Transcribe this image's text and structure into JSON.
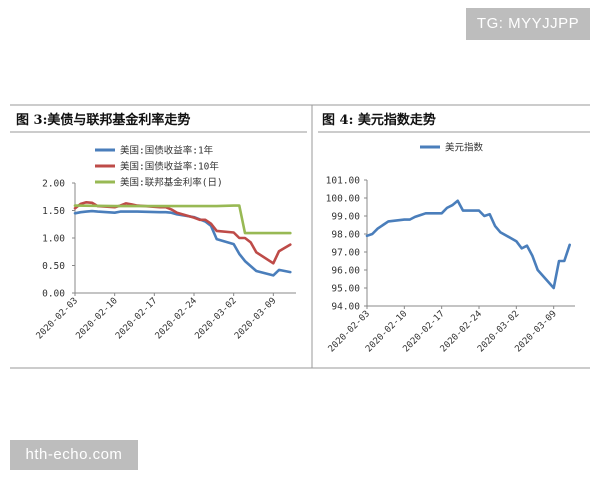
{
  "watermarks": {
    "top_right": "TG: MYYJJPP",
    "bottom_left": "hth-echo.com"
  },
  "figures": [
    {
      "title": "图 3:美债与联邦基金利率走势"
    },
    {
      "title": "图 4: 美元指数走势"
    }
  ],
  "colors": {
    "blue": "#4a7ebb",
    "red": "#be4b48",
    "green": "#98b954",
    "frame": "#9a9a9a",
    "axis": "#888888",
    "text": "#333333"
  },
  "chart_data": [
    {
      "type": "line",
      "title": "",
      "xlabel": "",
      "ylabel": "",
      "x_tick_labels": [
        "2020-02-03",
        "2020-02-10",
        "2020-02-17",
        "2020-02-24",
        "2020-03-02",
        "2020-03-09"
      ],
      "y_tick_labels": [
        "0.00",
        "0.50",
        "1.00",
        "1.50",
        "2.00"
      ],
      "ylim": [
        0,
        2.0
      ],
      "xlim": [
        "2020-02-03",
        "2020-03-13"
      ],
      "legend_position": "top-left",
      "series": [
        {
          "name": "美国:国债收益率:1年",
          "color_key": "blue",
          "points": [
            [
              "2020-02-03",
              1.45
            ],
            [
              "2020-02-04",
              1.47
            ],
            [
              "2020-02-05",
              1.48
            ],
            [
              "2020-02-06",
              1.49
            ],
            [
              "2020-02-07",
              1.48
            ],
            [
              "2020-02-10",
              1.46
            ],
            [
              "2020-02-11",
              1.48
            ],
            [
              "2020-02-12",
              1.48
            ],
            [
              "2020-02-13",
              1.48
            ],
            [
              "2020-02-14",
              1.48
            ],
            [
              "2020-02-18",
              1.47
            ],
            [
              "2020-02-19",
              1.47
            ],
            [
              "2020-02-20",
              1.46
            ],
            [
              "2020-02-21",
              1.43
            ],
            [
              "2020-02-24",
              1.38
            ],
            [
              "2020-02-25",
              1.34
            ],
            [
              "2020-02-26",
              1.3
            ],
            [
              "2020-02-27",
              1.22
            ],
            [
              "2020-02-28",
              0.98
            ],
            [
              "2020-03-02",
              0.89
            ],
            [
              "2020-03-03",
              0.71
            ],
            [
              "2020-03-04",
              0.58
            ],
            [
              "2020-03-05",
              0.49
            ],
            [
              "2020-03-06",
              0.4
            ],
            [
              "2020-03-09",
              0.32
            ],
            [
              "2020-03-10",
              0.42
            ],
            [
              "2020-03-11",
              0.4
            ],
            [
              "2020-03-12",
              0.38
            ]
          ]
        },
        {
          "name": "美国:国债收益率:10年",
          "color_key": "red",
          "points": [
            [
              "2020-02-03",
              1.54
            ],
            [
              "2020-02-04",
              1.62
            ],
            [
              "2020-02-05",
              1.65
            ],
            [
              "2020-02-06",
              1.64
            ],
            [
              "2020-02-07",
              1.58
            ],
            [
              "2020-02-10",
              1.56
            ],
            [
              "2020-02-11",
              1.59
            ],
            [
              "2020-02-12",
              1.63
            ],
            [
              "2020-02-13",
              1.61
            ],
            [
              "2020-02-14",
              1.59
            ],
            [
              "2020-02-18",
              1.56
            ],
            [
              "2020-02-19",
              1.56
            ],
            [
              "2020-02-20",
              1.52
            ],
            [
              "2020-02-21",
              1.46
            ],
            [
              "2020-02-24",
              1.37
            ],
            [
              "2020-02-25",
              1.33
            ],
            [
              "2020-02-26",
              1.33
            ],
            [
              "2020-02-27",
              1.26
            ],
            [
              "2020-02-28",
              1.13
            ],
            [
              "2020-03-02",
              1.1
            ],
            [
              "2020-03-03",
              1.0
            ],
            [
              "2020-03-04",
              1.0
            ],
            [
              "2020-03-05",
              0.92
            ],
            [
              "2020-03-06",
              0.74
            ],
            [
              "2020-03-09",
              0.54
            ],
            [
              "2020-03-10",
              0.76
            ],
            [
              "2020-03-11",
              0.82
            ],
            [
              "2020-03-12",
              0.88
            ]
          ]
        },
        {
          "name": "美国:联邦基金利率(日)",
          "color_key": "green",
          "points": [
            [
              "2020-02-03",
              1.59
            ],
            [
              "2020-02-10",
              1.58
            ],
            [
              "2020-02-17",
              1.58
            ],
            [
              "2020-02-24",
              1.58
            ],
            [
              "2020-02-28",
              1.58
            ],
            [
              "2020-03-02",
              1.59
            ],
            [
              "2020-03-03",
              1.59
            ],
            [
              "2020-03-04",
              1.09
            ],
            [
              "2020-03-09",
              1.09
            ],
            [
              "2020-03-12",
              1.09
            ]
          ]
        }
      ]
    },
    {
      "type": "line",
      "title": "",
      "xlabel": "",
      "ylabel": "",
      "x_tick_labels": [
        "2020-02-03",
        "2020-02-10",
        "2020-02-17",
        "2020-02-24",
        "2020-03-02",
        "2020-03-09"
      ],
      "y_tick_labels": [
        "94.00",
        "95.00",
        "96.00",
        "97.00",
        "98.00",
        "99.00",
        "100.00",
        "101.00"
      ],
      "ylim": [
        94,
        101
      ],
      "xlim": [
        "2020-02-03",
        "2020-03-13"
      ],
      "legend_position": "top-center",
      "series": [
        {
          "name": "美元指数",
          "color_key": "blue",
          "points": [
            [
              "2020-02-03",
              97.9
            ],
            [
              "2020-02-04",
              98.0
            ],
            [
              "2020-02-05",
              98.3
            ],
            [
              "2020-02-06",
              98.5
            ],
            [
              "2020-02-07",
              98.7
            ],
            [
              "2020-02-10",
              98.8
            ],
            [
              "2020-02-11",
              98.8
            ],
            [
              "2020-02-12",
              98.95
            ],
            [
              "2020-02-13",
              99.05
            ],
            [
              "2020-02-14",
              99.15
            ],
            [
              "2020-02-17",
              99.15
            ],
            [
              "2020-02-18",
              99.45
            ],
            [
              "2020-02-19",
              99.6
            ],
            [
              "2020-02-20",
              99.85
            ],
            [
              "2020-02-21",
              99.3
            ],
            [
              "2020-02-24",
              99.3
            ],
            [
              "2020-02-25",
              99.0
            ],
            [
              "2020-02-26",
              99.1
            ],
            [
              "2020-02-27",
              98.45
            ],
            [
              "2020-02-28",
              98.1
            ],
            [
              "2020-03-02",
              97.6
            ],
            [
              "2020-03-03",
              97.2
            ],
            [
              "2020-03-04",
              97.35
            ],
            [
              "2020-03-05",
              96.8
            ],
            [
              "2020-03-06",
              96.0
            ],
            [
              "2020-03-09",
              95.0
            ],
            [
              "2020-03-10",
              96.5
            ],
            [
              "2020-03-11",
              96.5
            ],
            [
              "2020-03-12",
              97.4
            ]
          ]
        }
      ]
    }
  ]
}
